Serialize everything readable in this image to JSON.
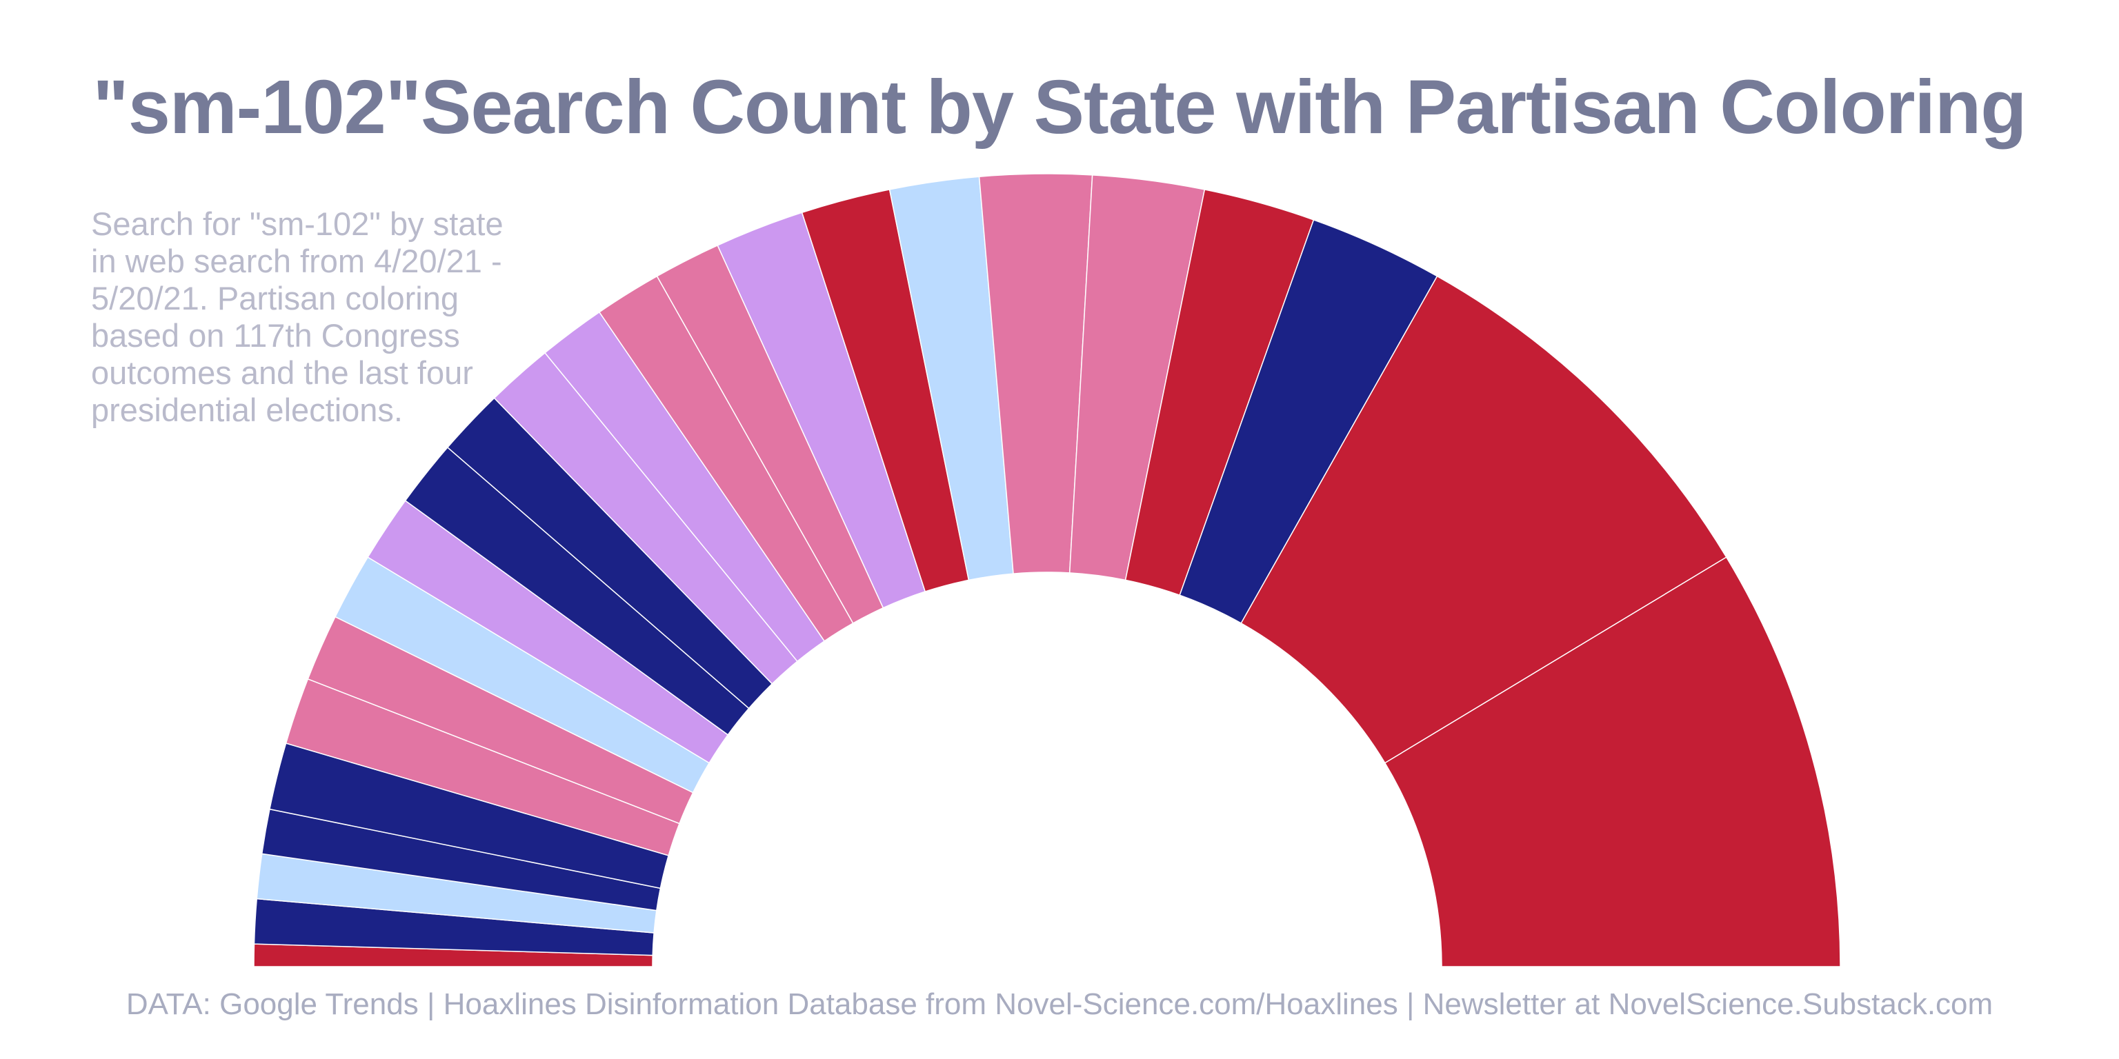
{
  "title": "\"sm-102\"Search Count by State with Partisan Coloring",
  "description": "Search for \"sm-102\" by state in web search from 4/20/21 - 5/20/21. Partisan coloring based on 117th Congress outcomes and the last four presidential elections.",
  "footer": "DATA: Google Trends | Hoaxlines Disinformation Database from Novel-Science.com/Hoaxlines | Newsletter at NovelScience.Substack.com",
  "colors": {
    "strong_red": "#c41e35",
    "lean_red": "#e275a3",
    "swing": "#cc98f0",
    "lean_blue": "#bbdbff",
    "strong_blue": "#1b2286"
  },
  "chart_data": {
    "type": "pie",
    "subtype": "semicircle-donut",
    "legend": "none",
    "slices": [
      {
        "category": "strong_red",
        "value": 1
      },
      {
        "category": "strong_blue",
        "value": 2
      },
      {
        "category": "lean_blue",
        "value": 2
      },
      {
        "category": "strong_blue",
        "value": 2
      },
      {
        "category": "strong_blue",
        "value": 3
      },
      {
        "category": "lean_red",
        "value": 3
      },
      {
        "category": "lean_red",
        "value": 3
      },
      {
        "category": "lean_blue",
        "value": 3
      },
      {
        "category": "swing",
        "value": 3
      },
      {
        "category": "strong_blue",
        "value": 3
      },
      {
        "category": "strong_blue",
        "value": 3
      },
      {
        "category": "swing",
        "value": 3
      },
      {
        "category": "swing",
        "value": 3
      },
      {
        "category": "lean_red",
        "value": 3
      },
      {
        "category": "lean_red",
        "value": 3
      },
      {
        "category": "swing",
        "value": 4
      },
      {
        "category": "strong_red",
        "value": 4
      },
      {
        "category": "lean_blue",
        "value": 4
      },
      {
        "category": "lean_red",
        "value": 5
      },
      {
        "category": "lean_red",
        "value": 5
      },
      {
        "category": "strong_red",
        "value": 5
      },
      {
        "category": "strong_blue",
        "value": 6
      },
      {
        "category": "strong_red",
        "value": 18
      },
      {
        "category": "strong_red",
        "value": 19
      }
    ]
  }
}
